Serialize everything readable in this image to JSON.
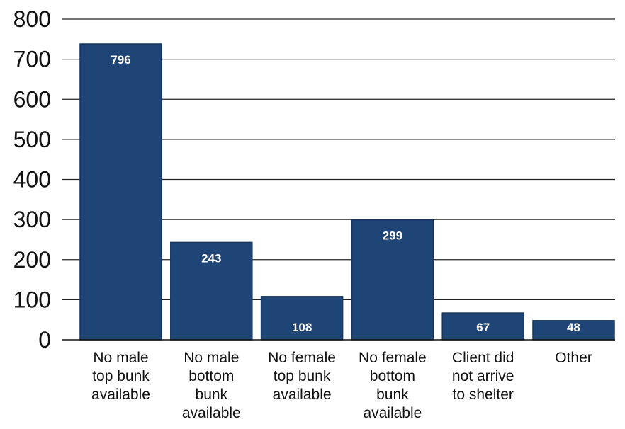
{
  "chart_data": {
    "type": "bar",
    "title": "",
    "xlabel": "",
    "ylabel": "",
    "ylim": [
      0,
      800
    ],
    "yticks": [
      0,
      100,
      200,
      300,
      400,
      500,
      600,
      700,
      800
    ],
    "grid": true,
    "categories": [
      [
        "No male",
        "top bunk",
        "available"
      ],
      [
        "No male",
        "bottom",
        "bunk",
        "available"
      ],
      [
        "No female",
        "top bunk",
        "available"
      ],
      [
        "No female",
        "bottom",
        "bunk",
        "available"
      ],
      [
        "Client did",
        "not arrive",
        "to shelter"
      ],
      [
        "Other"
      ]
    ],
    "values": [
      796,
      243,
      108,
      299,
      67,
      48
    ],
    "data_labels": [
      "796",
      "243",
      "108",
      "299",
      "67",
      "48"
    ],
    "bar_color": "#1f4577",
    "bar_outline": "#16345c",
    "gridline_color": "#222222"
  }
}
